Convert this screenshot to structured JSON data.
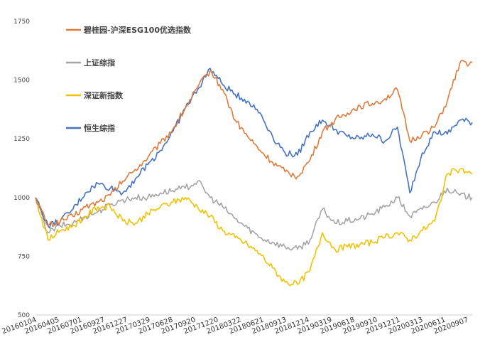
{
  "chart_data": {
    "type": "line",
    "title": "",
    "xlabel": "",
    "ylabel": "",
    "ylim": [
      500,
      1750
    ],
    "y_ticks": [
      500,
      750,
      1000,
      1250,
      1500,
      1750
    ],
    "x_ticks": [
      "20160104",
      "20160405",
      "20160701",
      "20160927",
      "20161227",
      "20170329",
      "20170628",
      "20170920",
      "20171220",
      "20180322",
      "20180621",
      "20180913",
      "20181214",
      "20190319",
      "20190618",
      "20190910",
      "20191211",
      "20200313",
      "20200611",
      "20200907"
    ],
    "grid": false,
    "legend_position": "top-left",
    "series": [
      {
        "name": "碧桂园-沪深ESG100优选指数",
        "color": "#E07B39",
        "values": [
          1000,
          880,
          900,
          920,
          960,
          980,
          1010,
          1070,
          1120,
          1170,
          1230,
          1290,
          1380,
          1470,
          1540,
          1460,
          1330,
          1260,
          1200,
          1150,
          1110,
          1090,
          1160,
          1280,
          1330,
          1360,
          1390,
          1400,
          1420,
          1460,
          1240,
          1270,
          1300,
          1410,
          1570,
          1575
        ]
      },
      {
        "name": "上证综指",
        "color": "#A5A5A5",
        "values": [
          1000,
          850,
          880,
          890,
          920,
          940,
          970,
          990,
          1000,
          1000,
          1020,
          1030,
          1040,
          1070,
          1000,
          960,
          910,
          870,
          830,
          810,
          790,
          780,
          820,
          950,
          890,
          900,
          910,
          930,
          960,
          1000,
          920,
          950,
          980,
          1040,
          1010,
          1000
        ]
      },
      {
        "name": "深证新指数",
        "color": "#F2C200",
        "values": [
          1000,
          820,
          860,
          880,
          920,
          960,
          960,
          900,
          890,
          930,
          960,
          980,
          1000,
          960,
          920,
          860,
          830,
          800,
          760,
          700,
          640,
          630,
          690,
          850,
          780,
          790,
          800,
          810,
          830,
          850,
          820,
          860,
          900,
          1100,
          1120,
          1100
        ]
      },
      {
        "name": "恒生综指",
        "color": "#4472C4",
        "values": [
          1000,
          880,
          900,
          950,
          1020,
          1060,
          1040,
          1020,
          1080,
          1140,
          1200,
          1280,
          1380,
          1460,
          1550,
          1480,
          1440,
          1410,
          1360,
          1260,
          1190,
          1180,
          1280,
          1330,
          1290,
          1260,
          1250,
          1270,
          1240,
          1300,
          1020,
          1190,
          1280,
          1270,
          1330,
          1320
        ]
      }
    ]
  }
}
